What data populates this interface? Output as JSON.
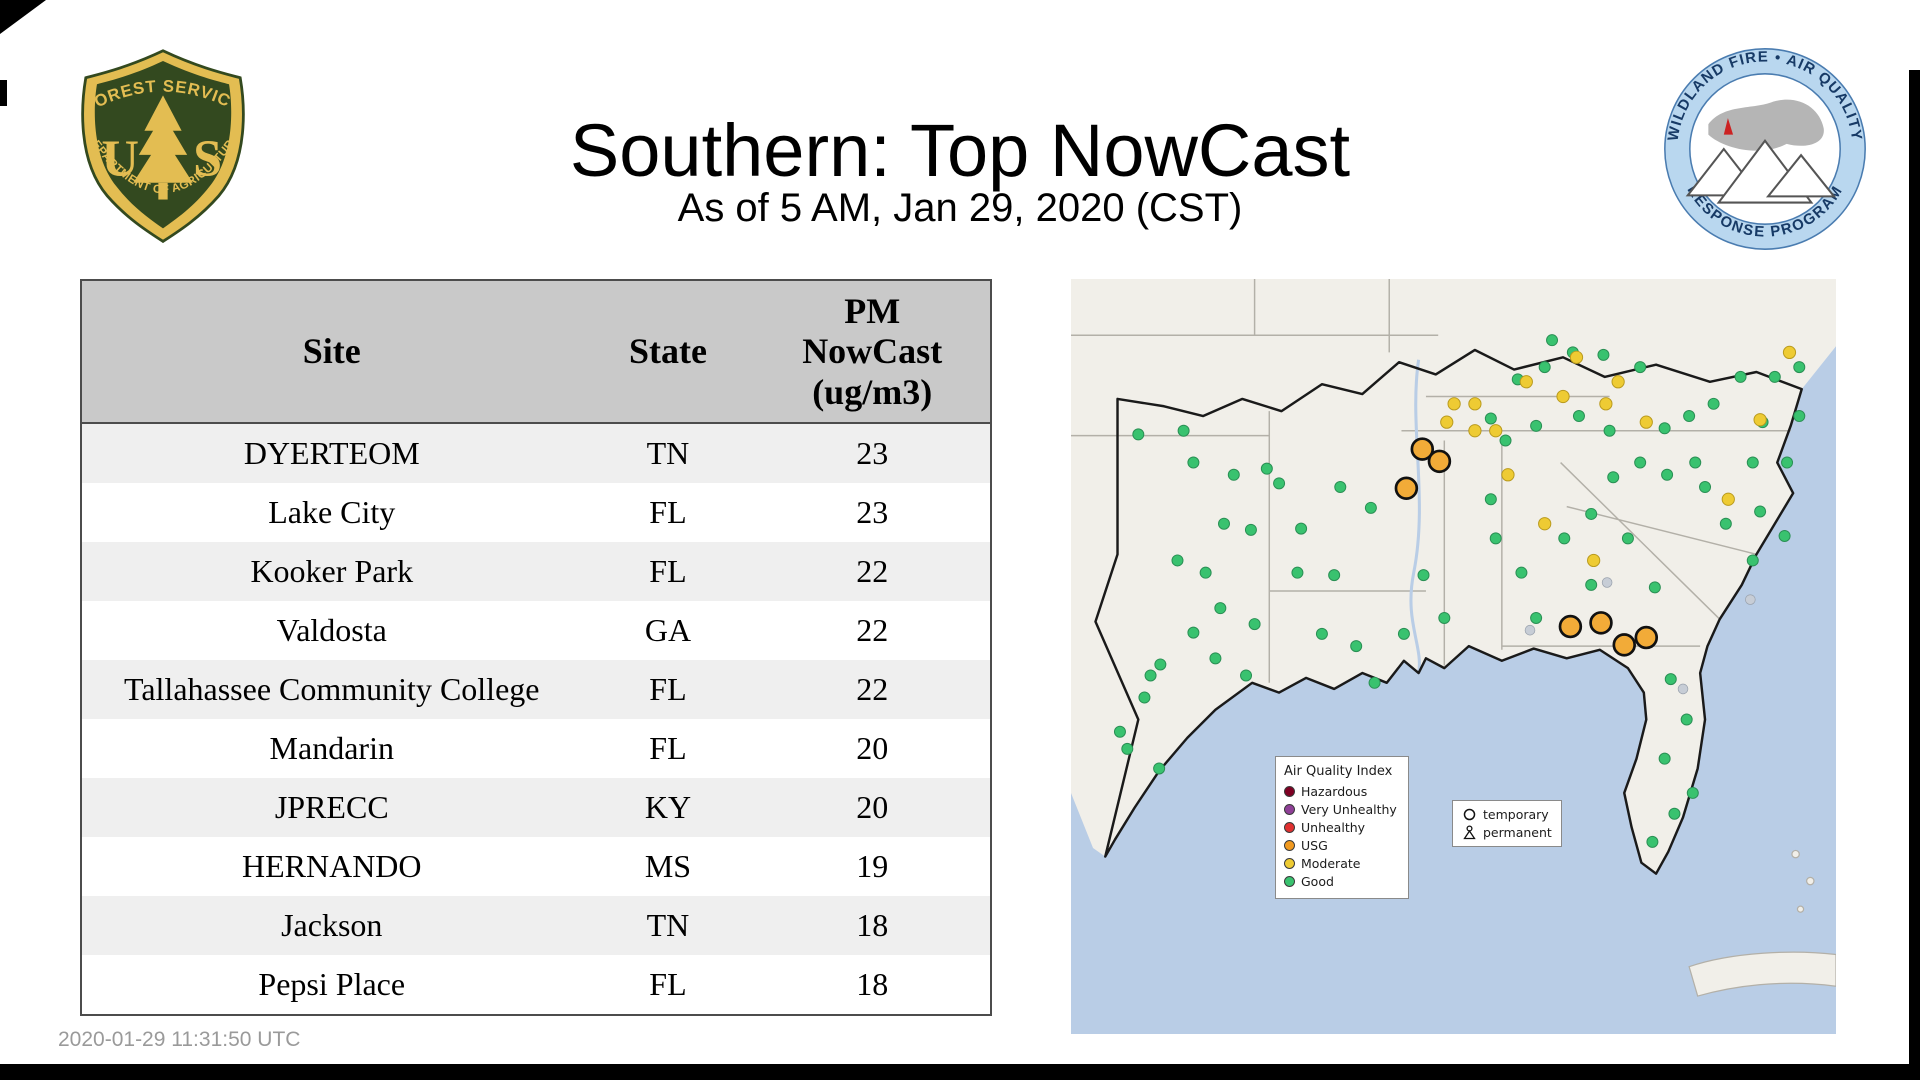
{
  "page": {
    "title": "Southern: Top NowCast",
    "subtitle": "As of  5 AM, Jan 29, 2020 (CST)",
    "footer_timestamp": "2020-01-29 11:31:50 UTC"
  },
  "logos": {
    "forest_service": {
      "top_text": "FOREST SERVICE",
      "monogram_left": "U",
      "monogram_right": "S",
      "bottom_text": "DEPARTMENT OF AGRICULTURE"
    },
    "wfaqrp": {
      "ring_text_top": "WILDLAND FIRE • AIR QUALITY",
      "ring_text_bottom": "RESPONSE PROGRAM"
    }
  },
  "colors": {
    "shield_green": "#33491f",
    "shield_gold": "#e3bd52",
    "ring_blue": "#b9d7ef",
    "ring_border": "#4a7cb0",
    "ring_text": "#173a66",
    "water": "#b9cde6",
    "land": "#f1efe9",
    "state_line": "#b3b0a8",
    "region_border": "#1a1a1a",
    "header_bg": "#c9c9c9",
    "row_alt": "#efefef"
  },
  "table": {
    "columns": [
      "Site",
      "State",
      "PM NowCast (ug/m3)"
    ],
    "rows": [
      [
        "DYERTEOM",
        "TN",
        "23"
      ],
      [
        "Lake City",
        "FL",
        "23"
      ],
      [
        "Kooker Park",
        "FL",
        "22"
      ],
      [
        "Valdosta",
        "GA",
        "22"
      ],
      [
        "Tallahassee Community College",
        "FL",
        "22"
      ],
      [
        "Mandarin",
        "FL",
        "20"
      ],
      [
        "JPRECC",
        "KY",
        "20"
      ],
      [
        "HERNANDO",
        "MS",
        "19"
      ],
      [
        "Jackson",
        "TN",
        "18"
      ],
      [
        "Pepsi Place",
        "FL",
        "18"
      ]
    ]
  },
  "chart_data": {
    "type": "table",
    "title": "Southern: Top NowCast",
    "subtitle": "As of  5 AM, Jan 29, 2020 (CST)",
    "columns": [
      "Site",
      "State",
      "PM NowCast (ug/m3)"
    ],
    "rows": [
      [
        "DYERTEOM",
        "TN",
        23
      ],
      [
        "Lake City",
        "FL",
        23
      ],
      [
        "Kooker Park",
        "FL",
        22
      ],
      [
        "Valdosta",
        "GA",
        22
      ],
      [
        "Tallahassee Community College",
        "FL",
        22
      ],
      [
        "Mandarin",
        "FL",
        20
      ],
      [
        "JPRECC",
        "KY",
        20
      ],
      [
        "HERNANDO",
        "MS",
        19
      ],
      [
        "Jackson",
        "TN",
        18
      ],
      [
        "Pepsi Place",
        "FL",
        18
      ]
    ]
  },
  "map": {
    "legend": {
      "title": "Air Quality Index",
      "items": [
        {
          "label": "Hazardous",
          "color": "#7e0023"
        },
        {
          "label": "Very Unhealthy",
          "color": "#8f3f97"
        },
        {
          "label": "Unhealthy",
          "color": "#e03030"
        },
        {
          "label": "USG",
          "color": "#f0991f"
        },
        {
          "label": "Moderate",
          "color": "#eecb33"
        },
        {
          "label": "Good",
          "color": "#39c26f"
        }
      ]
    },
    "symbol_legend": {
      "items": [
        {
          "symbol": "circle",
          "label": "temporary"
        },
        {
          "symbol": "figure",
          "label": "permanent"
        }
      ]
    },
    "marker_styles": {
      "good": {
        "color": "#39c26f",
        "r": 4.5,
        "stroke": "#2a8f54",
        "stroke_width": 0.8
      },
      "moderate": {
        "color": "#eecb33",
        "r": 5,
        "stroke": "#b99a1d",
        "stroke_width": 0.8
      },
      "usg": {
        "color": "#f2ab38",
        "r": 8.5,
        "stroke": "#111111",
        "stroke_width": 2.2
      },
      "inactive": {
        "color": "#c7cdd6",
        "r": 4,
        "stroke": "#9aa2ad",
        "stroke_width": 0.6
      }
    },
    "markers": {
      "good": [
        [
          55,
          127
        ],
        [
          92,
          124
        ],
        [
          100,
          150
        ],
        [
          133,
          160
        ],
        [
          160,
          155
        ],
        [
          170,
          167
        ],
        [
          125,
          200
        ],
        [
          147,
          205
        ],
        [
          87,
          230
        ],
        [
          110,
          240
        ],
        [
          122,
          269
        ],
        [
          100,
          289
        ],
        [
          73,
          315
        ],
        [
          65,
          324
        ],
        [
          143,
          324
        ],
        [
          40,
          370
        ],
        [
          72,
          400
        ],
        [
          46,
          384
        ],
        [
          60,
          342
        ],
        [
          150,
          282
        ],
        [
          118,
          310
        ],
        [
          185,
          240
        ],
        [
          205,
          290
        ],
        [
          233,
          300
        ],
        [
          248,
          330
        ],
        [
          272,
          290
        ],
        [
          215,
          242
        ],
        [
          188,
          204
        ],
        [
          245,
          187
        ],
        [
          220,
          170
        ],
        [
          288,
          242
        ],
        [
          305,
          277
        ],
        [
          343,
          180
        ],
        [
          347,
          212
        ],
        [
          368,
          240
        ],
        [
          380,
          277
        ],
        [
          403,
          212
        ],
        [
          425,
          250
        ],
        [
          425,
          192
        ],
        [
          443,
          162
        ],
        [
          465,
          150
        ],
        [
          487,
          160
        ],
        [
          510,
          150
        ],
        [
          518,
          170
        ],
        [
          535,
          200
        ],
        [
          557,
          230
        ],
        [
          477,
          252
        ],
        [
          455,
          212
        ],
        [
          563,
          190
        ],
        [
          583,
          210
        ],
        [
          595,
          72
        ],
        [
          575,
          80
        ],
        [
          547,
          80
        ],
        [
          525,
          102
        ],
        [
          505,
          112
        ],
        [
          485,
          122
        ],
        [
          557,
          150
        ],
        [
          585,
          150
        ],
        [
          465,
          72
        ],
        [
          435,
          62
        ],
        [
          410,
          60
        ],
        [
          387,
          72
        ],
        [
          415,
          112
        ],
        [
          440,
          124
        ],
        [
          380,
          120
        ],
        [
          355,
          132
        ],
        [
          343,
          114
        ],
        [
          490,
          327
        ],
        [
          503,
          360
        ],
        [
          485,
          392
        ],
        [
          508,
          420
        ],
        [
          475,
          460
        ],
        [
          493,
          437
        ],
        [
          365,
          82
        ],
        [
          393,
          50
        ],
        [
          565,
          117
        ],
        [
          595,
          112
        ]
      ],
      "moderate": [
        [
          307,
          117
        ],
        [
          330,
          102
        ],
        [
          347,
          124
        ],
        [
          372,
          84
        ],
        [
          413,
          64
        ],
        [
          437,
          102
        ],
        [
          470,
          117
        ],
        [
          357,
          160
        ],
        [
          387,
          200
        ],
        [
          427,
          230
        ],
        [
          537,
          180
        ],
        [
          563,
          115
        ],
        [
          587,
          60
        ],
        [
          330,
          124
        ],
        [
          313,
          102
        ],
        [
          447,
          84
        ],
        [
          402,
          96
        ]
      ],
      "usg": [
        [
          287,
          139
        ],
        [
          301,
          149
        ],
        [
          274,
          171
        ],
        [
          408,
          284
        ],
        [
          433,
          281
        ],
        [
          452,
          299
        ],
        [
          470,
          293
        ]
      ],
      "inactive": [
        [
          375,
          287
        ],
        [
          500,
          335
        ],
        [
          555,
          262
        ],
        [
          438,
          248
        ]
      ]
    }
  }
}
